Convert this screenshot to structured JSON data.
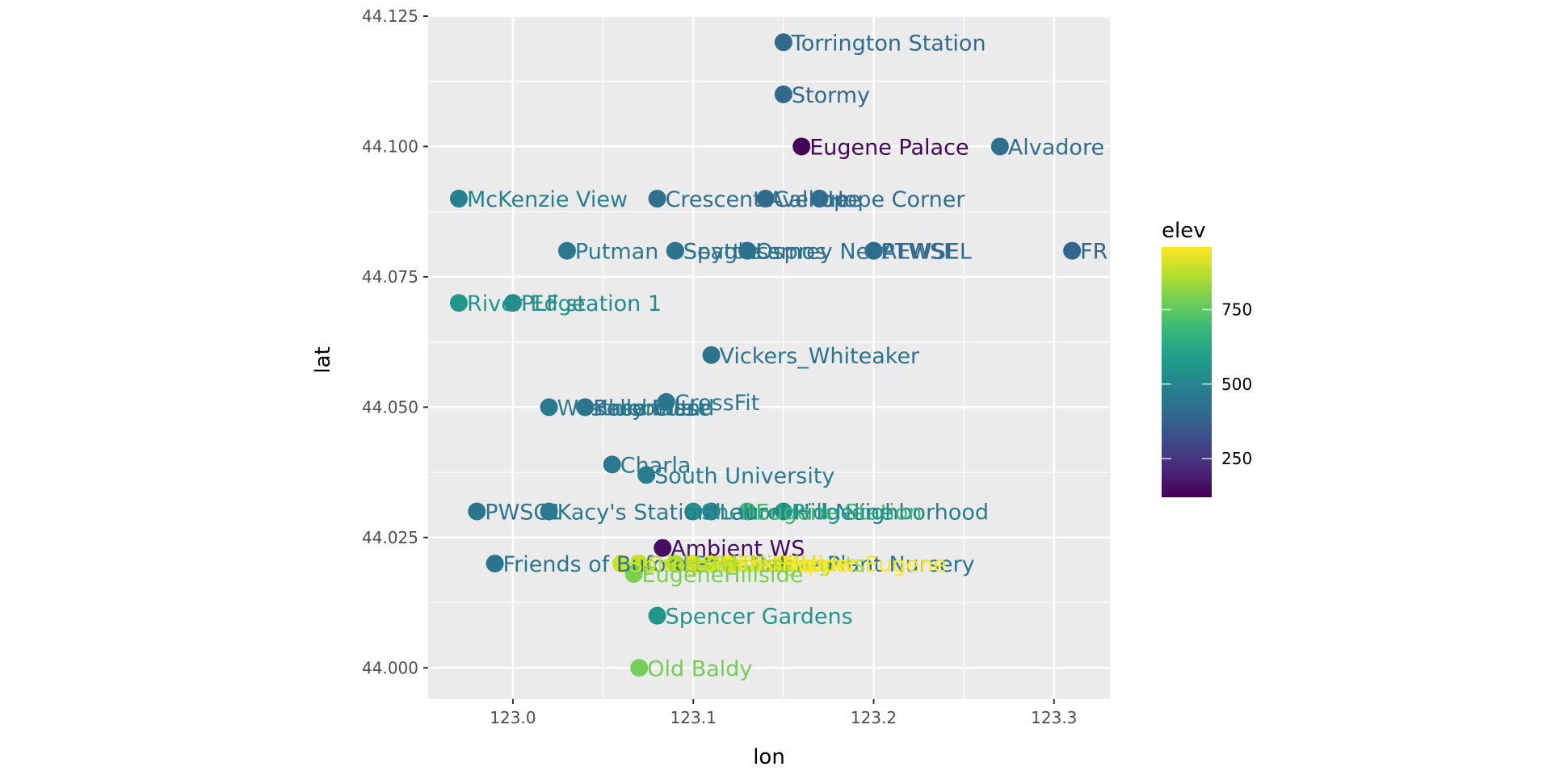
{
  "chart_data": {
    "type": "scatter",
    "xlabel": "lon",
    "ylabel": "lat",
    "xlim": [
      122.953,
      123.331
    ],
    "ylim": [
      43.994,
      44.125
    ],
    "x_ticks": [
      123.0,
      123.1,
      123.2,
      123.3
    ],
    "x_tick_labels": [
      "123.0",
      "123.1",
      "123.2",
      "123.3"
    ],
    "y_ticks": [
      44.0,
      44.025,
      44.05,
      44.075,
      44.1,
      44.125
    ],
    "y_tick_labels": [
      "44.000",
      "44.025",
      "44.050",
      "44.075",
      "44.100",
      "44.125"
    ],
    "grid": true,
    "color_scale": {
      "title": "elev",
      "palette": "viridis",
      "range": [
        120,
        960
      ],
      "breaks": [
        250,
        500,
        750
      ],
      "break_labels": [
        "250",
        "500",
        "750"
      ]
    },
    "points": [
      {
        "name": "Torrington Station",
        "lon": 123.15,
        "lat": 44.12,
        "elev": 410
      },
      {
        "name": "Stormy",
        "lon": 123.15,
        "lat": 44.11,
        "elev": 400
      },
      {
        "name": "Eugene Palace",
        "lon": 123.16,
        "lat": 44.1,
        "elev": 130
      },
      {
        "name": "Alvadore",
        "lon": 123.27,
        "lat": 44.1,
        "elev": 420
      },
      {
        "name": "McKenzie View",
        "lon": 122.97,
        "lat": 44.09,
        "elev": 490
      },
      {
        "name": "Crescent Avenue",
        "lon": 123.08,
        "lat": 44.09,
        "elev": 430
      },
      {
        "name": "Calliope",
        "lon": 123.14,
        "lat": 44.09,
        "elev": 410
      },
      {
        "name": "Hope Corner",
        "lon": 123.17,
        "lat": 44.09,
        "elev": 420
      },
      {
        "name": "Putman",
        "lon": 123.03,
        "lat": 44.08,
        "elev": 460
      },
      {
        "name": "Seattle",
        "lon": 123.09,
        "lat": 44.08,
        "elev": 440
      },
      {
        "name": "Spyglass",
        "lon": 123.09,
        "lat": 44.08,
        "elev": 440
      },
      {
        "name": "Lemos",
        "lon": 123.13,
        "lat": 44.08,
        "elev": 420
      },
      {
        "name": "Osprey Nest",
        "lon": 123.13,
        "lat": 44.08,
        "elev": 430
      },
      {
        "name": "AEWSEL",
        "lon": 123.2,
        "lat": 44.08,
        "elev": 400
      },
      {
        "name": "PTWSE",
        "lon": 123.2,
        "lat": 44.08,
        "elev": 410
      },
      {
        "name": "FR",
        "lon": 123.31,
        "lat": 44.08,
        "elev": 390
      },
      {
        "name": "River Edge",
        "lon": 122.97,
        "lat": 44.07,
        "elev": 560
      },
      {
        "name": "PLF station 1",
        "lon": 123.0,
        "lat": 44.07,
        "elev": 520
      },
      {
        "name": "Vickers_Whiteaker",
        "lon": 123.11,
        "lat": 44.06,
        "elev": 440
      },
      {
        "name": "Westmoreland",
        "lon": 123.02,
        "lat": 44.05,
        "elev": 460
      },
      {
        "name": "Bluebelle",
        "lon": 123.04,
        "lat": 44.05,
        "elev": 450
      },
      {
        "name": "Base West",
        "lon": 123.04,
        "lat": 44.05,
        "elev": 450
      },
      {
        "name": "Kelly Butte",
        "lon": 123.04,
        "lat": 44.05,
        "elev": 440
      },
      {
        "name": "CrossFit",
        "lon": 123.085,
        "lat": 44.051,
        "elev": 450
      },
      {
        "name": "Charla",
        "lon": 123.055,
        "lat": 44.039,
        "elev": 460
      },
      {
        "name": "South University",
        "lon": 123.074,
        "lat": 44.037,
        "elev": 470
      },
      {
        "name": "PWSC1",
        "lon": 122.98,
        "lat": 44.03,
        "elev": 450
      },
      {
        "name": "Kacy's Station",
        "lon": 123.02,
        "lat": 44.03,
        "elev": 460
      },
      {
        "name": "Shelton",
        "lon": 123.1,
        "lat": 44.03,
        "elev": 540
      },
      {
        "name": "Laurel Hill Neighborhood",
        "lon": 123.11,
        "lat": 44.03,
        "elev": 480
      },
      {
        "name": "Eugene Station",
        "lon": 123.13,
        "lat": 44.03,
        "elev": 700
      },
      {
        "name": "Ridgeline",
        "lon": 123.15,
        "lat": 44.03,
        "elev": 560
      },
      {
        "name": "Ambient WS",
        "lon": 123.083,
        "lat": 44.023,
        "elev": 150
      },
      {
        "name": "Friends of Buford Park Native Plant Nursery",
        "lon": 122.99,
        "lat": 44.02,
        "elev": 450
      },
      {
        "name": "Spring Boulevard",
        "lon": 123.06,
        "lat": 44.02,
        "elev": 900
      },
      {
        "name": "Crest Drive",
        "lon": 123.07,
        "lat": 44.02,
        "elev": 880
      },
      {
        "name": "Hawkins Heights",
        "lon": 123.09,
        "lat": 44.02,
        "elev": 860
      },
      {
        "name": "South Hills",
        "lon": 123.1,
        "lat": 44.02,
        "elev": 920
      },
      {
        "name": "Mt Pisgah",
        "lon": 123.11,
        "lat": 44.02,
        "elev": 870
      },
      {
        "name": "Fox Hollow",
        "lon": 123.12,
        "lat": 44.02,
        "elev": 950
      },
      {
        "name": "Upper Eugene",
        "lon": 123.15,
        "lat": 44.02,
        "elev": 960
      },
      {
        "name": "EugeneHillside",
        "lon": 123.067,
        "lat": 44.018,
        "elev": 790
      },
      {
        "name": "Spencer Gardens",
        "lon": 123.08,
        "lat": 44.01,
        "elev": 560
      },
      {
        "name": "Old Baldy",
        "lon": 123.07,
        "lat": 44.0,
        "elev": 780
      }
    ]
  }
}
